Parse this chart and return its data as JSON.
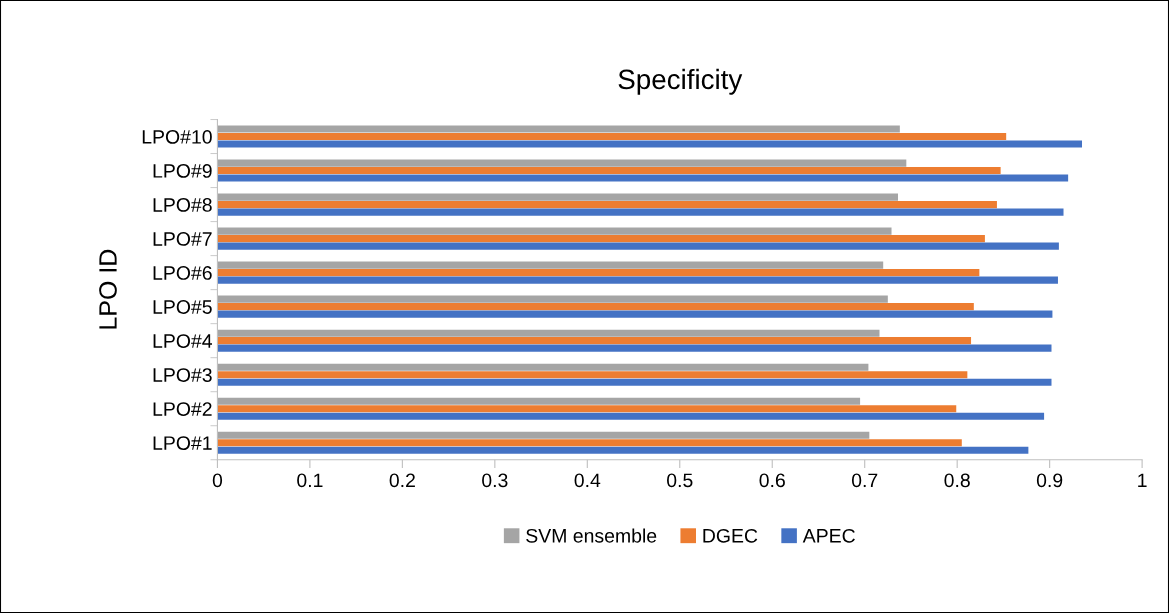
{
  "chart_data": {
    "type": "bar",
    "orientation": "horizontal",
    "title": "Specificity",
    "ylabel": "LPO ID",
    "categories": [
      "LPO#10",
      "LPO#9",
      "LPO#8",
      "LPO#7",
      "LPO#6",
      "LPO#5",
      "LPO#4",
      "LPO#3",
      "LPO#2",
      "LPO#1"
    ],
    "series": [
      {
        "name": "SVM ensemble",
        "color": "#a5a5a5",
        "values": [
          0.738,
          0.745,
          0.736,
          0.729,
          0.72,
          0.725,
          0.716,
          0.704,
          0.695,
          0.705
        ]
      },
      {
        "name": "DGEC",
        "color": "#ed7d31",
        "values": [
          0.853,
          0.847,
          0.843,
          0.83,
          0.824,
          0.818,
          0.815,
          0.811,
          0.799,
          0.805
        ]
      },
      {
        "name": "APEC",
        "color": "#4472c4",
        "values": [
          0.935,
          0.92,
          0.915,
          0.91,
          0.909,
          0.903,
          0.902,
          0.902,
          0.894,
          0.877
        ]
      }
    ],
    "xlim": [
      0,
      1
    ],
    "xticks": [
      {
        "value": 0,
        "label": "0"
      },
      0.1,
      0.2,
      0.3,
      0.4,
      0.5,
      0.6,
      0.7,
      0.8,
      0.9,
      {
        "value": 1,
        "label": "1"
      }
    ],
    "grid": false,
    "legend": "bottom"
  }
}
